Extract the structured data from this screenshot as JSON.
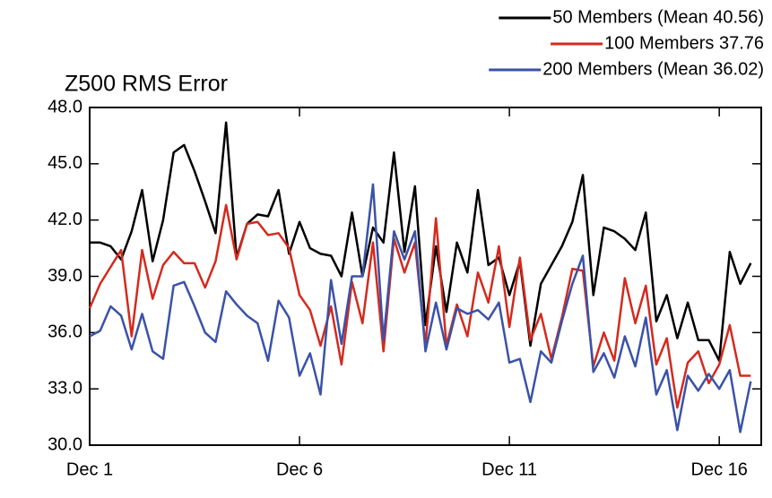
{
  "chart_data": {
    "type": "line",
    "title": "Z500 RMS Error",
    "x": [
      1,
      1.25,
      1.5,
      1.75,
      2,
      2.25,
      2.5,
      2.75,
      3,
      3.25,
      3.5,
      3.75,
      4,
      4.25,
      4.5,
      4.75,
      5,
      5.25,
      5.5,
      5.75,
      6,
      6.25,
      6.5,
      6.75,
      7,
      7.25,
      7.5,
      7.75,
      8,
      8.25,
      8.5,
      8.75,
      9,
      9.25,
      9.5,
      9.75,
      10,
      10.25,
      10.5,
      10.75,
      11,
      11.25,
      11.5,
      11.75,
      12,
      12.25,
      12.5,
      12.75,
      13,
      13.25,
      13.5,
      13.75,
      14,
      14.25,
      14.5,
      14.75,
      15,
      15.25,
      15.5,
      15.75,
      16,
      16.25,
      16.5,
      16.75
    ],
    "series": [
      {
        "name": "50 Members (Mean 40.56)",
        "color": "#000000",
        "values": [
          40.8,
          40.8,
          40.6,
          39.9,
          41.4,
          43.6,
          39.8,
          42.0,
          45.6,
          46.0,
          44.6,
          43.0,
          41.3,
          47.2,
          40.0,
          41.8,
          42.3,
          42.2,
          43.6,
          40.2,
          41.9,
          40.5,
          40.2,
          40.1,
          39.0,
          42.4,
          39.0,
          41.6,
          40.8,
          45.6,
          40.3,
          43.8,
          36.4,
          40.6,
          37.1,
          40.8,
          39.2,
          43.6,
          39.6,
          40.0,
          38.0,
          39.8,
          35.3,
          38.6,
          39.6,
          40.6,
          41.9,
          44.4,
          38.0,
          41.6,
          41.4,
          41.0,
          40.4,
          42.4,
          36.6,
          38.0,
          35.7,
          37.6,
          35.6,
          35.6,
          34.5,
          40.3,
          38.6,
          39.7
        ]
      },
      {
        "name": "100 Members 37.76",
        "color": "#d42a1e",
        "values": [
          37.3,
          38.6,
          39.5,
          40.4,
          35.8,
          40.4,
          37.8,
          39.6,
          40.3,
          39.7,
          39.7,
          38.4,
          39.8,
          42.8,
          39.9,
          41.8,
          41.9,
          41.2,
          41.3,
          40.5,
          38.0,
          37.2,
          35.3,
          37.4,
          34.3,
          38.7,
          36.5,
          40.8,
          35.0,
          41.0,
          39.2,
          40.8,
          35.3,
          42.1,
          35.3,
          37.5,
          35.8,
          39.2,
          37.6,
          40.6,
          36.3,
          40.0,
          35.6,
          37.0,
          34.6,
          36.8,
          39.4,
          39.3,
          34.2,
          36.0,
          34.5,
          38.9,
          36.5,
          38.5,
          34.3,
          35.7,
          32.0,
          34.4,
          35.0,
          33.3,
          34.3,
          36.4,
          33.7,
          33.7
        ]
      },
      {
        "name": "200 Members (Mean 36.02)",
        "color": "#3a52a8",
        "values": [
          35.8,
          36.1,
          37.4,
          36.9,
          35.1,
          37.0,
          35.0,
          34.6,
          38.5,
          38.7,
          37.4,
          36.0,
          35.5,
          38.2,
          37.5,
          36.9,
          36.5,
          34.5,
          37.7,
          36.8,
          33.7,
          34.9,
          32.7,
          38.8,
          35.4,
          39.0,
          39.0,
          43.9,
          35.6,
          41.4,
          39.9,
          41.4,
          35.0,
          37.6,
          35.1,
          37.3,
          37.0,
          37.2,
          36.7,
          37.6,
          34.4,
          34.6,
          32.3,
          35.0,
          34.4,
          36.6,
          38.6,
          40.1,
          33.9,
          34.9,
          33.6,
          35.8,
          34.2,
          36.8,
          32.7,
          34.0,
          30.8,
          33.7,
          32.9,
          33.8,
          33.0,
          34.0,
          30.7,
          33.4
        ]
      }
    ],
    "xlim": [
      1,
      17
    ],
    "xticks": [
      {
        "value": 1,
        "label": "Dec 1"
      },
      {
        "value": 6,
        "label": "Dec 6"
      },
      {
        "value": 11,
        "label": "Dec 11"
      },
      {
        "value": 16,
        "label": "Dec 16"
      }
    ],
    "ylim": [
      30,
      48
    ],
    "yticks": [
      {
        "value": 30,
        "label": "30.0"
      },
      {
        "value": 33,
        "label": "33.0"
      },
      {
        "value": 36,
        "label": "36.0"
      },
      {
        "value": 39,
        "label": "39.0"
      },
      {
        "value": 42,
        "label": "42.0"
      },
      {
        "value": 45,
        "label": "45.0"
      },
      {
        "value": 48,
        "label": "48.0"
      }
    ],
    "legend": "top-right"
  }
}
